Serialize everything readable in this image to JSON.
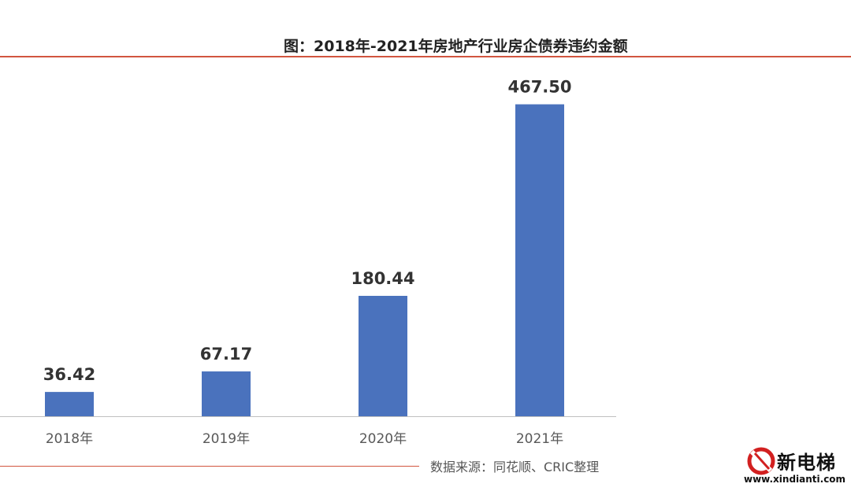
{
  "chart_data": {
    "type": "bar",
    "title": "图：2018年-2021年房地产行业房企债券违约金额",
    "categories": [
      "2018年",
      "2019年",
      "2020年",
      "2021年"
    ],
    "values": [
      36.42,
      67.17,
      180.44,
      467.5
    ],
    "value_labels": [
      "36.42",
      "67.17",
      "180.44",
      "467.50"
    ],
    "xlabel": "",
    "ylabel": "",
    "ylim": [
      0,
      500
    ],
    "grid": false,
    "legend": "none",
    "bar_color": "#4a72bd",
    "accent_color": "#d2553f"
  },
  "source": "数据来源：同花顺、CRIC整理",
  "watermark": {
    "name": "新电梯",
    "url": "www.xindianti.com"
  }
}
